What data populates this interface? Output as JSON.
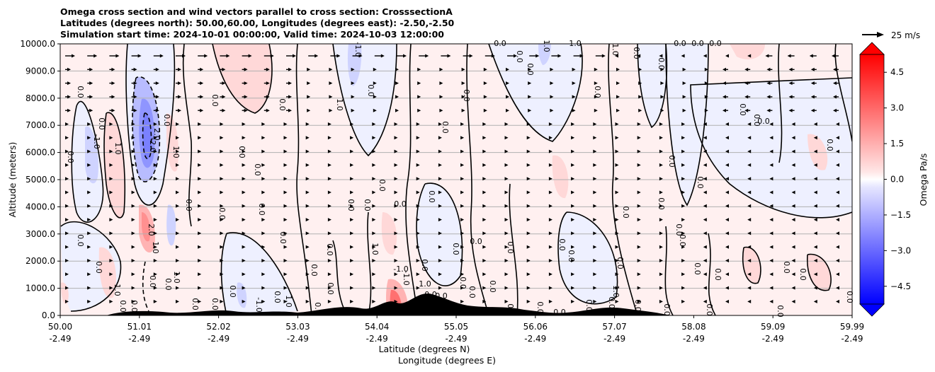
{
  "chart_data": {
    "type": "contour",
    "title_lines": [
      "Omega cross section and wind vectors parallel to cross section: CrosssectionA",
      "Latitudes (degrees north): 50.00,60.00, Longitudes (degrees east): -2.50,-2.50",
      "Simulation start time: 2024-10-01 00:00:00, Valid time: 2024-10-03 12:00:00"
    ],
    "ylabel": "Altitude (meters)",
    "xlabel_lat": "Latitude (degrees N)",
    "xlabel_lon": "Longitude (degrees E)",
    "ylim": [
      0,
      10000
    ],
    "yticks": [
      "0.0",
      "1000.0",
      "2000.0",
      "3000.0",
      "4000.0",
      "5000.0",
      "6000.0",
      "7000.0",
      "8000.0",
      "9000.0",
      "10000.0"
    ],
    "xticks": [
      {
        "lat": "50.00",
        "lon": "-2.49"
      },
      {
        "lat": "51.01",
        "lon": "-2.49"
      },
      {
        "lat": "52.02",
        "lon": "-2.49"
      },
      {
        "lat": "53.03",
        "lon": "-2.49"
      },
      {
        "lat": "54.04",
        "lon": "-2.49"
      },
      {
        "lat": "55.05",
        "lon": "-2.49"
      },
      {
        "lat": "56.06",
        "lon": "-2.49"
      },
      {
        "lat": "57.07",
        "lon": "-2.49"
      },
      {
        "lat": "58.08",
        "lon": "-2.49"
      },
      {
        "lat": "59.09",
        "lon": "-2.49"
      },
      {
        "lat": "59.99",
        "lon": "-2.49"
      }
    ],
    "grid": "horizontal",
    "colorbar": {
      "label": "Omega Pa/s",
      "range": [
        -5.25,
        5.25
      ],
      "ticks": [
        "4.5",
        "3.0",
        "1.5",
        "0.0",
        "−1.5",
        "−3.0",
        "−4.5"
      ],
      "tick_values": [
        4.5,
        3.0,
        1.5,
        0.0,
        -1.5,
        -3.0,
        -4.5
      ],
      "colormap": "bwr",
      "extend": "both"
    },
    "quiver_key": "25 m/s",
    "contour_labels": [
      "0.0",
      "1.0",
      "-1.0",
      "-2.0",
      "2.0"
    ],
    "features": [
      {
        "lat_range": [
          50.9,
          51.2
        ],
        "alt_range": [
          4500,
          8500
        ],
        "omega": -2.0
      },
      {
        "lat_range": [
          51.0,
          51.3
        ],
        "alt_range": [
          2500,
          3800
        ],
        "omega": 2.0
      },
      {
        "lat_range": [
          54.1,
          54.4
        ],
        "alt_range": [
          0,
          1200
        ],
        "omega": 1.5
      }
    ]
  }
}
